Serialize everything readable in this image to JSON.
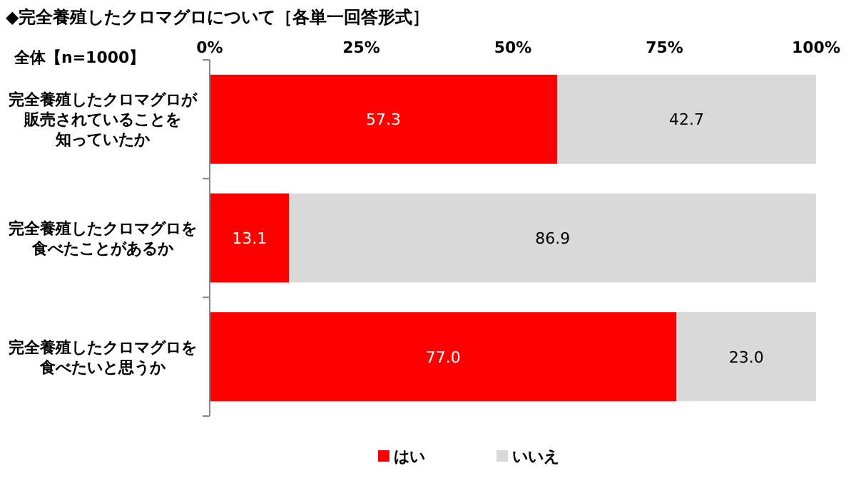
{
  "chart_data": {
    "type": "bar",
    "orientation": "horizontal",
    "stacked": true,
    "title": "◆完全養殖したクロマグロについて［各単一回答形式］",
    "subtitle": "全体【n=1000】",
    "categories": [
      "完全養殖したクロマグロが販売されていることを知っていたか",
      "完全養殖したクロマグロを食べたことがあるか",
      "完全養殖したクロマグロを食べたいと思うか"
    ],
    "series": [
      {
        "name": "はい",
        "color": "#ff0000",
        "values": [
          57.3,
          13.1,
          77.0
        ],
        "value_labels": [
          "57.3",
          "13.1",
          "77.0"
        ]
      },
      {
        "name": "いいえ",
        "color": "#d9d9d9",
        "values": [
          42.7,
          86.9,
          23.0
        ],
        "value_labels": [
          "42.7",
          "86.9",
          "23.0"
        ]
      }
    ],
    "xlim": [
      0,
      100
    ],
    "xticks": [
      {
        "value": 0,
        "label": "0%"
      },
      {
        "value": 25,
        "label": "25%"
      },
      {
        "value": 50,
        "label": "50%"
      },
      {
        "value": 75,
        "label": "75%"
      },
      {
        "value": 100,
        "label": "100%"
      }
    ],
    "legend": "bottom",
    "grid": false
  }
}
